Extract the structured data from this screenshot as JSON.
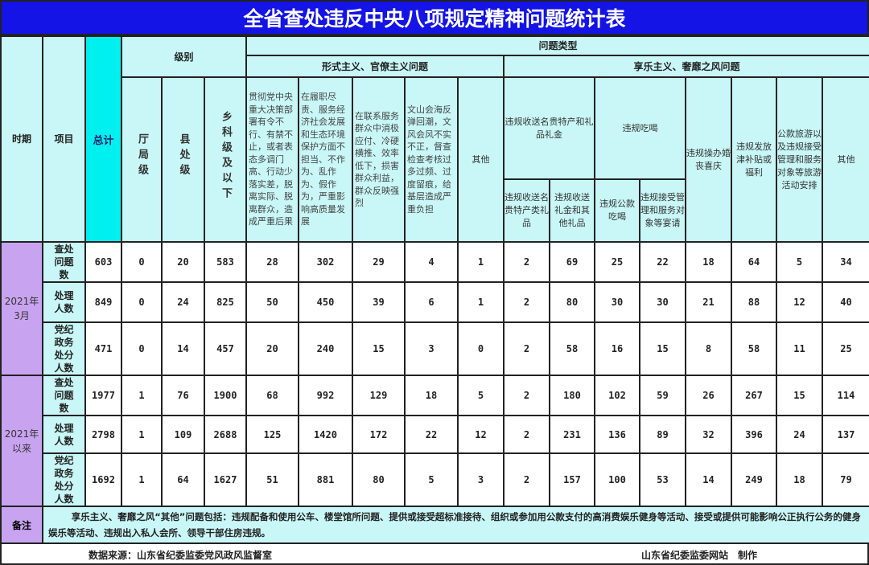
{
  "title": "全省查处违反中央八项规定精神问题统计表",
  "header": {
    "period": "时期",
    "item": "项目",
    "total": "总计",
    "level": "级别",
    "levels": [
      "厅局级",
      "县处级",
      "乡科级及以下"
    ],
    "problem_type": "问题类型",
    "formalism": {
      "label": "形式主义、官僚主义问题",
      "columns": [
        "贯彻党中央重大决策部署有令不行、有禁不止，或者表态多调门高、行动少落实差，脱离实际、脱离群众，造成严重后果",
        "在履职尽责、服务经济社会发展和生态环境保护方面不担当、不作为、乱作为、假作为，严重影响高质量发展",
        "在联系服务群众中消极应付、冷硬横推、效率低下，损害群众利益，群众反映强烈",
        "文山会海反弹回潮，文风会风不实不正，督查检查考核过多过频、过度留痕，给基层造成严重负担",
        "其他"
      ]
    },
    "hedonism": {
      "label": "享乐主义、奢靡之风问题",
      "gifts": {
        "label": "违规收送名贵特产和礼品礼金",
        "sub": [
          "违规收送名贵特产类礼品",
          "违规收送礼金和其他礼品"
        ]
      },
      "dining": {
        "label": "违规吃喝",
        "sub": [
          "违规公款吃喝",
          "违规接受管理和服务对象等宴请"
        ]
      },
      "others": [
        "违规操办婚丧喜庆",
        "违规发放津补贴或福利",
        "公款旅游以及违规接受管理和服务对象等旅游活动安排",
        "其他"
      ]
    }
  },
  "groups": [
    {
      "period": "2021年3月",
      "rows": [
        {
          "item": "查处问题数",
          "values": [
            603,
            0,
            20,
            583,
            28,
            302,
            29,
            4,
            1,
            2,
            69,
            25,
            22,
            18,
            64,
            5,
            34
          ]
        },
        {
          "item": "处理人数",
          "values": [
            849,
            0,
            24,
            825,
            50,
            450,
            39,
            6,
            1,
            2,
            80,
            30,
            30,
            21,
            88,
            12,
            40
          ]
        },
        {
          "item": "党纪政务处分人数",
          "values": [
            471,
            0,
            14,
            457,
            20,
            240,
            15,
            3,
            0,
            2,
            58,
            16,
            15,
            8,
            58,
            11,
            25
          ]
        }
      ]
    },
    {
      "period": "2021年以来",
      "rows": [
        {
          "item": "查处问题数",
          "values": [
            1977,
            1,
            76,
            1900,
            68,
            992,
            129,
            18,
            5,
            2,
            180,
            102,
            59,
            26,
            267,
            15,
            114
          ]
        },
        {
          "item": "处理人数",
          "values": [
            2798,
            1,
            109,
            2688,
            125,
            1420,
            172,
            22,
            12,
            2,
            231,
            136,
            89,
            32,
            396,
            24,
            137
          ]
        },
        {
          "item": "党纪政务处分人数",
          "values": [
            1692,
            1,
            64,
            1627,
            51,
            881,
            80,
            5,
            3,
            2,
            157,
            100,
            53,
            14,
            249,
            18,
            79
          ]
        }
      ]
    }
  ],
  "note": {
    "label": "备注",
    "text": "享乐主义、奢靡之风“其他”问题包括：违规配备和使用公车、楼堂馆所问题、提供或接受超标准接待、组织或参加用公款支付的高消费娱乐健身等活动、接受或提供可能影响公正执行公务的健身娱乐等活动、违规出入私人会所、领导干部住房违规。"
  },
  "footer": {
    "source": "数据来源：山东省纪委监委党风政风监督室",
    "maker": "山东省纪委监委网站　制作"
  },
  "colors": {
    "title_bg": "#1414e6",
    "header_bg": "#c9f7f7",
    "total_bg": "#00f0f0",
    "period_bg": "#c8a4f0"
  }
}
